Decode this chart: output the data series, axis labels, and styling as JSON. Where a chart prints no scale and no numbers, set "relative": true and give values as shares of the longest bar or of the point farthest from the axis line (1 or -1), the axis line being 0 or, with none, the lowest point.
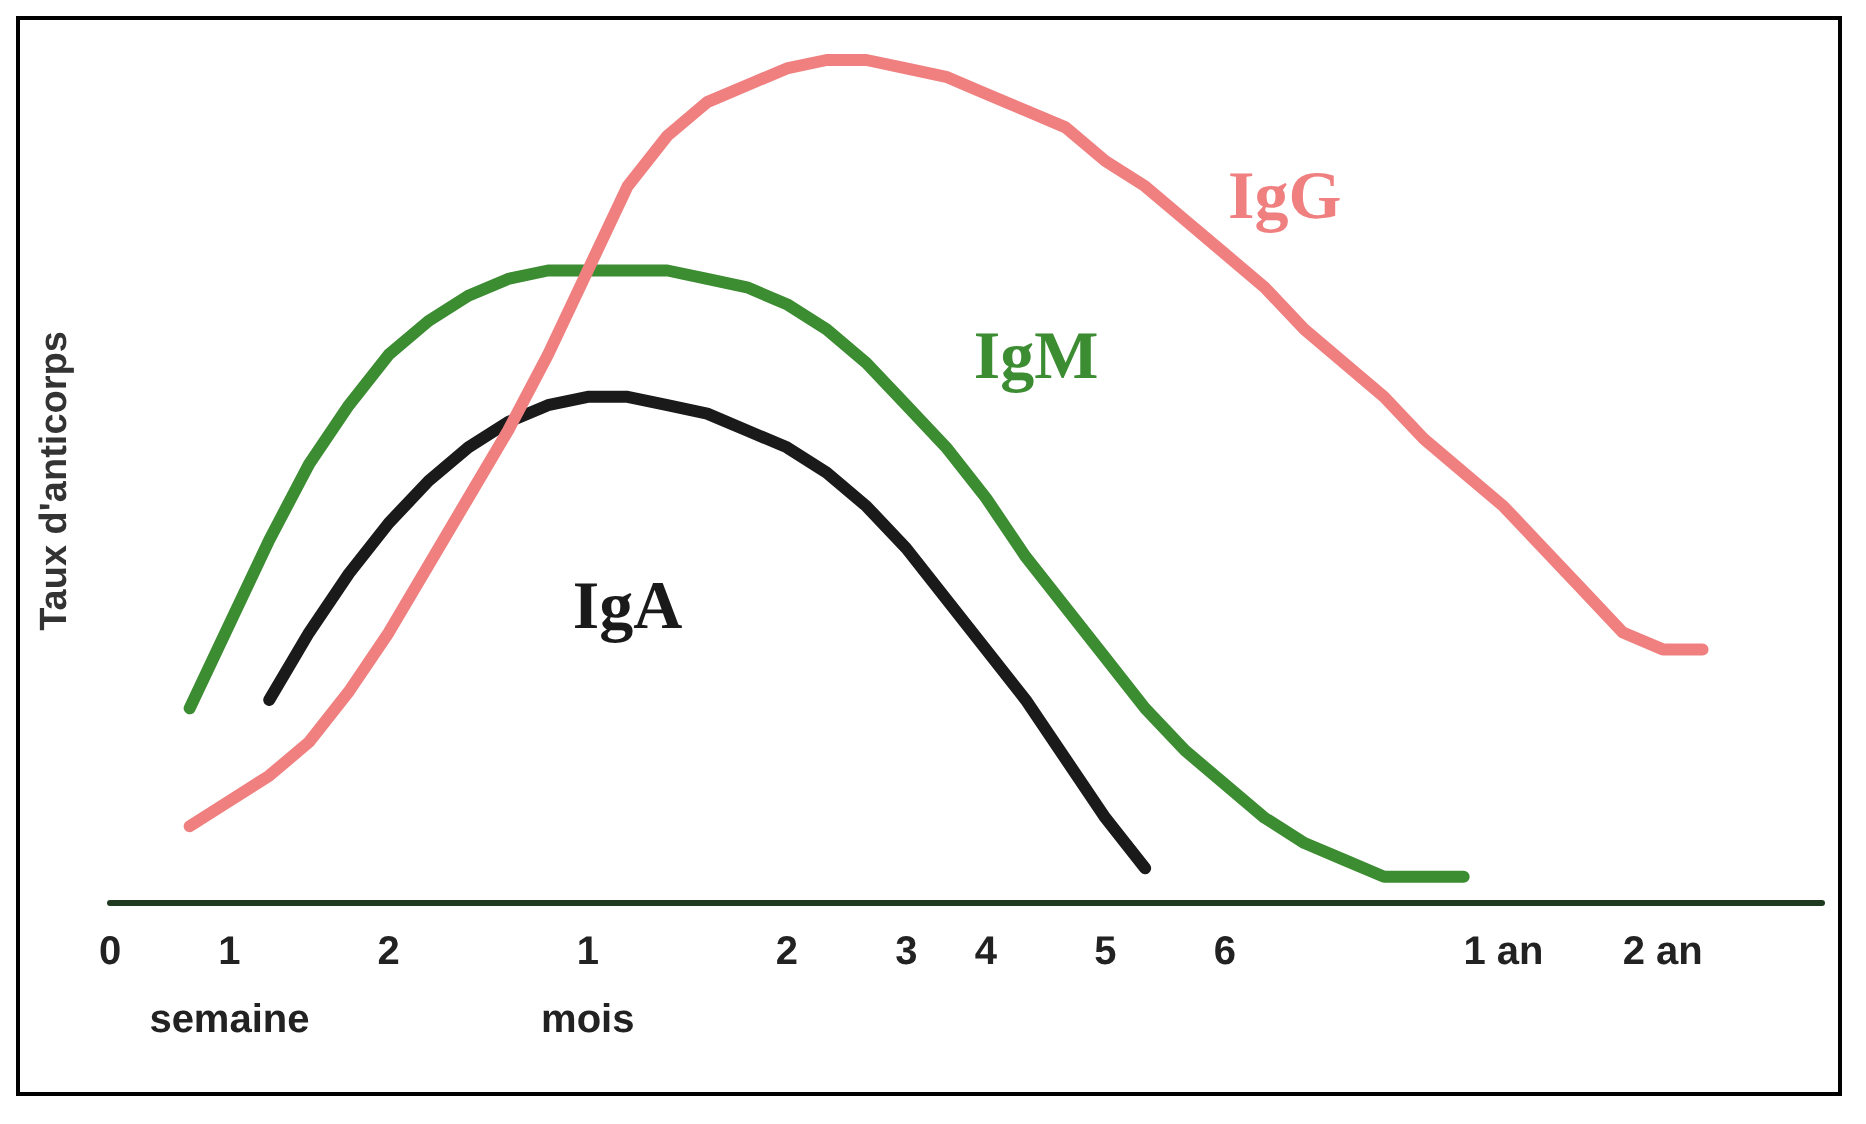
{
  "chart_data": {
    "type": "line",
    "relative": true,
    "ylabel": "Taux d'anticorps",
    "categories": [
      "0",
      null,
      null,
      "1\nsemaine",
      null,
      null,
      null,
      "2",
      null,
      null,
      null,
      null,
      "1\nmois",
      null,
      null,
      null,
      null,
      "2",
      null,
      null,
      "3",
      null,
      "4",
      null,
      null,
      "5",
      null,
      null,
      "6",
      null,
      null,
      null,
      null,
      null,
      null,
      "1 an",
      null,
      null,
      null,
      "2 an",
      null,
      null,
      null,
      null
    ],
    "grid": false,
    "legend": false,
    "marker": "none",
    "line_style": "solid",
    "series": [
      {
        "name": "IgG",
        "color": "#f08080",
        "values": [
          null,
          null,
          0.09,
          0.12,
          0.15,
          0.19,
          0.25,
          0.32,
          0.4,
          0.48,
          0.56,
          0.65,
          0.75,
          0.85,
          0.91,
          0.95,
          0.97,
          0.99,
          1,
          1,
          0.99,
          0.98,
          0.96,
          0.94,
          0.92,
          0.88,
          0.85,
          0.81,
          0.77,
          0.73,
          0.68,
          0.64,
          0.6,
          0.55,
          0.51,
          0.47,
          0.42,
          0.37,
          0.32,
          0.3,
          0.3,
          null,
          null,
          null
        ]
      },
      {
        "name": "IgM",
        "color": "#3c8c32",
        "values": [
          null,
          null,
          0.23,
          0.33,
          0.43,
          0.52,
          0.59,
          0.65,
          0.69,
          0.72,
          0.74,
          0.75,
          0.75,
          0.75,
          0.75,
          0.74,
          0.73,
          0.71,
          0.68,
          0.64,
          0.59,
          0.54,
          0.48,
          0.41,
          0.35,
          0.29,
          0.23,
          0.18,
          0.14,
          0.1,
          0.07,
          0.05,
          0.03,
          0.03,
          0.03,
          null,
          null,
          null,
          null,
          null,
          null,
          null,
          null,
          null
        ]
      },
      {
        "name": "IgA",
        "color": "#1a1a1a",
        "values": [
          null,
          null,
          null,
          null,
          0.24,
          0.32,
          0.39,
          0.45,
          0.5,
          0.54,
          0.57,
          0.59,
          0.6,
          0.6,
          0.59,
          0.58,
          0.56,
          0.54,
          0.51,
          0.47,
          0.42,
          0.36,
          0.3,
          0.24,
          0.17,
          0.1,
          0.04,
          null,
          null,
          null,
          null,
          null,
          null,
          null,
          null,
          null,
          null,
          null,
          null,
          null,
          null,
          null,
          null,
          null
        ]
      }
    ]
  }
}
